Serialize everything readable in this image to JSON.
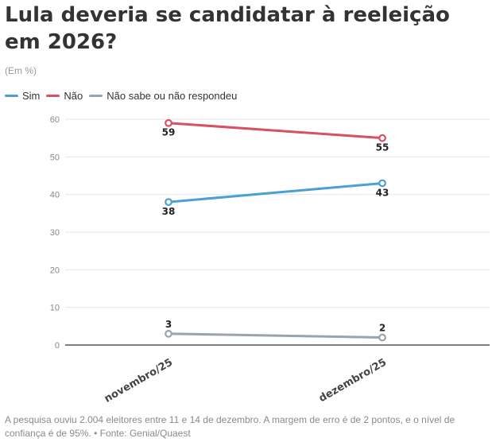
{
  "title": "Lula deveria se candidatar à reeleição em 2026?",
  "subtitle": "(Em %)",
  "footnote": "A pesquisa ouviu 2.004 eleitores entre 11 e 14 de dezembro. A margem de erro é de 2 pontos, e o nível de confiança é de 95%. • Fonte: Genial/Quaest",
  "colors": {
    "sim": "#4a9fd3",
    "nao": "#d94f63",
    "ns": "#9aa4ad"
  },
  "chart_data": {
    "type": "line",
    "categories": [
      "novembro/25",
      "dezembro/25"
    ],
    "series": [
      {
        "name": "Sim",
        "values": [
          38,
          43
        ],
        "color": "#4a9fd3"
      },
      {
        "name": "Não",
        "values": [
          59,
          55
        ],
        "color": "#d94f63"
      },
      {
        "name": "Não sabe ou não respondeu",
        "values": [
          3,
          2
        ],
        "color": "#9aa4ad"
      }
    ],
    "yticks": [
      0,
      10,
      20,
      30,
      40,
      50,
      60
    ],
    "ylim": [
      0,
      60
    ],
    "xlabel": "",
    "ylabel": "",
    "grid": true,
    "legend_position": "top-left"
  }
}
